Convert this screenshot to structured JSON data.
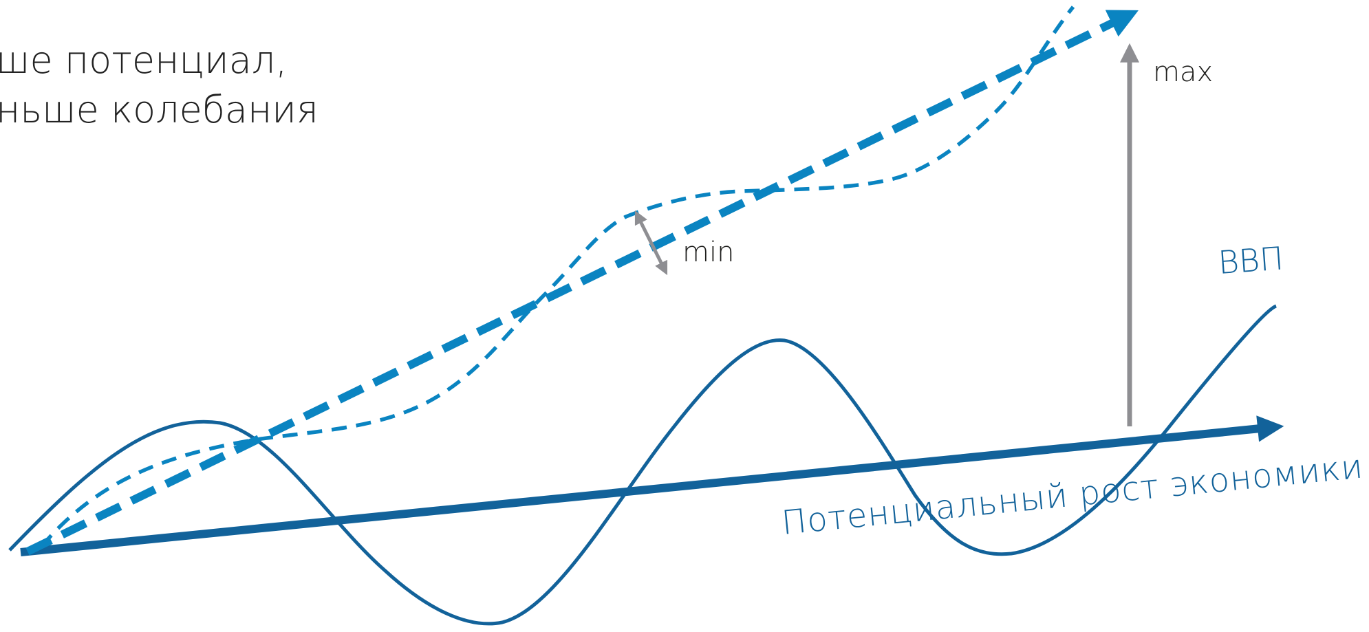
{
  "heading": {
    "line1": "ше потенциал,",
    "line2": "ньше колебания"
  },
  "labels": {
    "gdp": "ВВП",
    "potential": "Потенциальный рост экономики",
    "min": "min",
    "max": "max"
  },
  "colors": {
    "gdp_curve": "#12629a",
    "potential_line": "#12629a",
    "raised_trend": "#0a84c1",
    "annotation_arrow": "#8e8e92",
    "label_text": "#1d1d1b"
  }
}
